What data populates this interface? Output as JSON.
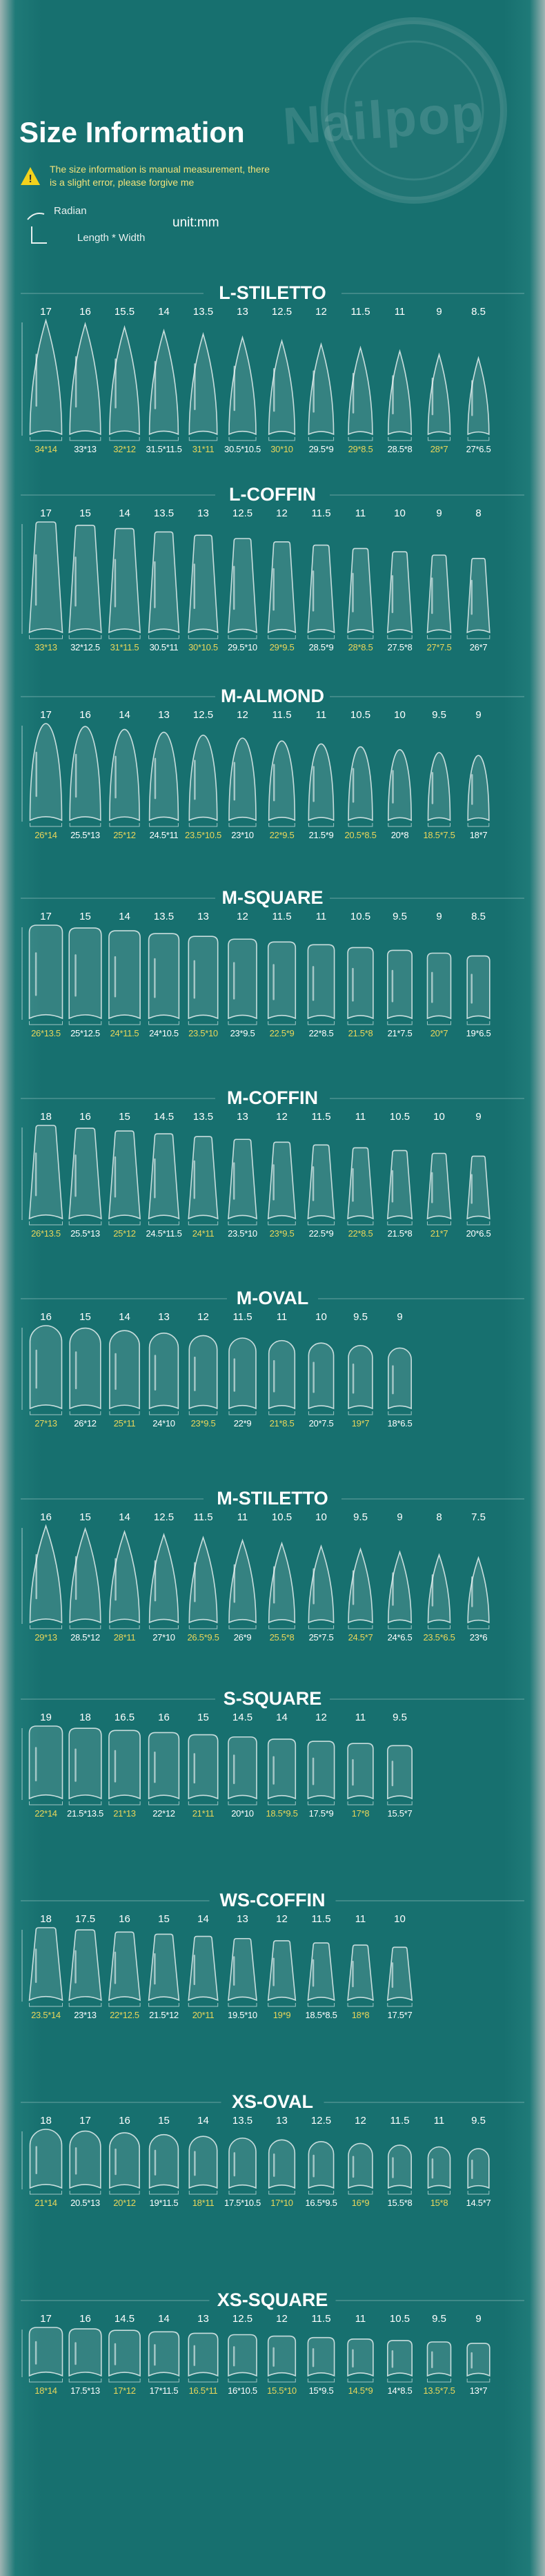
{
  "header": {
    "logo": "Nailpop",
    "title": "Size Information",
    "notice": "The size information is manual measurement, there is a slight error, please forgive me",
    "legend_radian": "Radian",
    "legend_size": "Length * Width",
    "unit": "unit:mm"
  },
  "sections": [
    {
      "title": "L-STILETTO",
      "radians": [
        17,
        16,
        15.5,
        14,
        13.5,
        13,
        12.5,
        12,
        11.5,
        11,
        9,
        8.5
      ],
      "sizes": [
        "34*14",
        "33*13",
        "32*12",
        "31.5*11.5",
        "31*11",
        "30.5*10.5",
        "30*10",
        "29.5*9",
        "29*8.5",
        "28.5*8",
        "28*7",
        "27*6.5"
      ]
    },
    {
      "title": "L-COFFIN",
      "radians": [
        17,
        15,
        14,
        13.5,
        13,
        12.5,
        12,
        11.5,
        11,
        10,
        9,
        8
      ],
      "sizes": [
        "33*13",
        "32*12.5",
        "31*11.5",
        "30.5*11",
        "30*10.5",
        "29.5*10",
        "29*9.5",
        "28.5*9",
        "28*8.5",
        "27.5*8",
        "27*7.5",
        "26*7"
      ]
    },
    {
      "title": "M-ALMOND",
      "radians": [
        17,
        16,
        14,
        13,
        12.5,
        12,
        11.5,
        11,
        10.5,
        10,
        9.5,
        9
      ],
      "sizes": [
        "26*14",
        "25.5*13",
        "25*12",
        "24.5*11",
        "23.5*10.5",
        "23*10",
        "22*9.5",
        "21.5*9",
        "20.5*8.5",
        "20*8",
        "18.5*7.5",
        "18*7"
      ]
    },
    {
      "title": "M-SQUARE",
      "radians": [
        17,
        15,
        14,
        13.5,
        13,
        12,
        11.5,
        11,
        10.5,
        9.5,
        9,
        8.5
      ],
      "sizes": [
        "26*13.5",
        "25*12.5",
        "24*11.5",
        "24*10.5",
        "23.5*10",
        "23*9.5",
        "22.5*9",
        "22*8.5",
        "21.5*8",
        "21*7.5",
        "20*7",
        "19*6.5"
      ]
    },
    {
      "title": "M-COFFIN",
      "radians": [
        18,
        16,
        15,
        14.5,
        13.5,
        13,
        12,
        11.5,
        11,
        10.5,
        10,
        9
      ],
      "sizes": [
        "26*13.5",
        "25.5*13",
        "25*12",
        "24.5*11.5",
        "24*11",
        "23.5*10",
        "23*9.5",
        "22.5*9",
        "22*8.5",
        "21.5*8",
        "21*7",
        "20*6.5"
      ]
    },
    {
      "title": "M-OVAL",
      "radians": [
        16,
        15,
        14,
        13,
        12,
        11.5,
        11,
        10,
        9.5,
        9
      ],
      "sizes": [
        "27*13",
        "26*12",
        "25*11",
        "24*10",
        "23*9.5",
        "22*9",
        "21*8.5",
        "20*7.5",
        "19*7",
        "18*6.5"
      ]
    },
    {
      "title": "M-STILETTO",
      "radians": [
        16,
        15,
        14,
        12.5,
        11.5,
        11,
        10.5,
        10,
        9.5,
        9,
        8,
        7.5
      ],
      "sizes": [
        "29*13",
        "28.5*12",
        "28*11",
        "27*10",
        "26.5*9.5",
        "26*9",
        "25.5*8",
        "25*7.5",
        "24.5*7",
        "24*6.5",
        "23.5*6.5",
        "23*6"
      ]
    },
    {
      "title": "S-SQUARE",
      "radians": [
        19,
        18,
        16.5,
        16,
        15,
        14.5,
        14,
        12,
        11,
        9.5
      ],
      "sizes": [
        "22*14",
        "21.5*13.5",
        "21*13",
        "22*12",
        "21*11",
        "20*10",
        "18.5*9.5",
        "17.5*9",
        "17*8",
        "15.5*7"
      ]
    },
    {
      "title": "WS-COFFIN",
      "radians": [
        18,
        17.5,
        16,
        15,
        14,
        13,
        12,
        11.5,
        11,
        10
      ],
      "sizes": [
        "23.5*14",
        "23*13",
        "22*12.5",
        "21.5*12",
        "20*11",
        "19.5*10",
        "19*9",
        "18.5*8.5",
        "18*8",
        "17.5*7"
      ]
    },
    {
      "title": "XS-OVAL",
      "radians": [
        18,
        17,
        16,
        15,
        14,
        13.5,
        13,
        12.5,
        12,
        11.5,
        11,
        9.5
      ],
      "sizes": [
        "21*14",
        "20.5*13",
        "20*12",
        "19*11.5",
        "18*11",
        "17.5*10.5",
        "17*10",
        "16.5*9.5",
        "16*9",
        "15.5*8",
        "15*8",
        "14.5*7"
      ]
    },
    {
      "title": "XS-SQUARE",
      "radians": [
        17,
        16,
        14.5,
        14,
        13,
        12.5,
        12,
        11.5,
        11,
        10.5,
        9.5,
        9
      ],
      "sizes": [
        "18*14",
        "17.5*13",
        "17*12",
        "17*11.5",
        "16.5*11",
        "16*10.5",
        "15.5*10",
        "15*9.5",
        "14.5*9",
        "14*8.5",
        "13.5*7.5",
        "13*7"
      ]
    }
  ]
}
